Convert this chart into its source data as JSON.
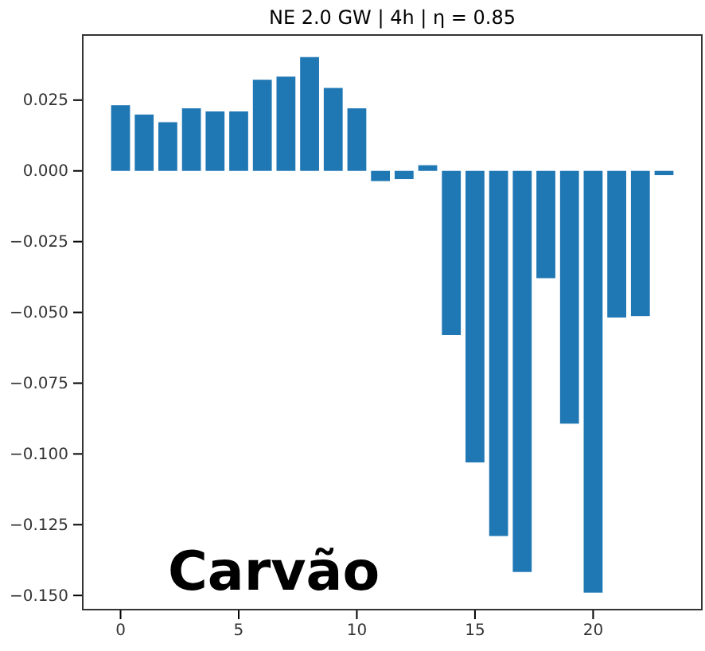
{
  "chart_data": {
    "type": "bar",
    "title": "NE 2.0 GW | 4h | η = 0.85",
    "x": [
      0,
      1,
      2,
      3,
      4,
      5,
      6,
      7,
      8,
      9,
      10,
      11,
      12,
      13,
      14,
      15,
      16,
      17,
      18,
      19,
      20,
      21,
      22,
      23
    ],
    "values": [
      0.0232,
      0.0199,
      0.0172,
      0.0221,
      0.021,
      0.021,
      0.0322,
      0.0333,
      0.0402,
      0.0293,
      0.0221,
      -0.0036,
      -0.0029,
      0.002,
      -0.058,
      -0.103,
      -0.129,
      -0.1417,
      -0.0379,
      -0.0893,
      -0.149,
      -0.0518,
      -0.0513,
      -0.0015
    ],
    "color": "#1f77b4",
    "xlim": [
      -1.6,
      24.6
    ],
    "xticks": [
      0,
      5,
      10,
      15,
      20
    ],
    "ylim": [
      -0.155,
      0.048
    ],
    "yticks": [
      {
        "value": -0.15,
        "label": "−0.150"
      },
      {
        "value": -0.125,
        "label": "−0.125"
      },
      {
        "value": -0.1,
        "label": "−0.100"
      },
      {
        "value": -0.075,
        "label": "−0.075"
      },
      {
        "value": -0.05,
        "label": "−0.050"
      },
      {
        "value": -0.025,
        "label": "−0.025"
      },
      {
        "value": 0,
        "label": "0.000"
      },
      {
        "value": 0.025,
        "label": "0.025"
      }
    ],
    "annotations": [
      "Carvão"
    ],
    "grid": false
  }
}
